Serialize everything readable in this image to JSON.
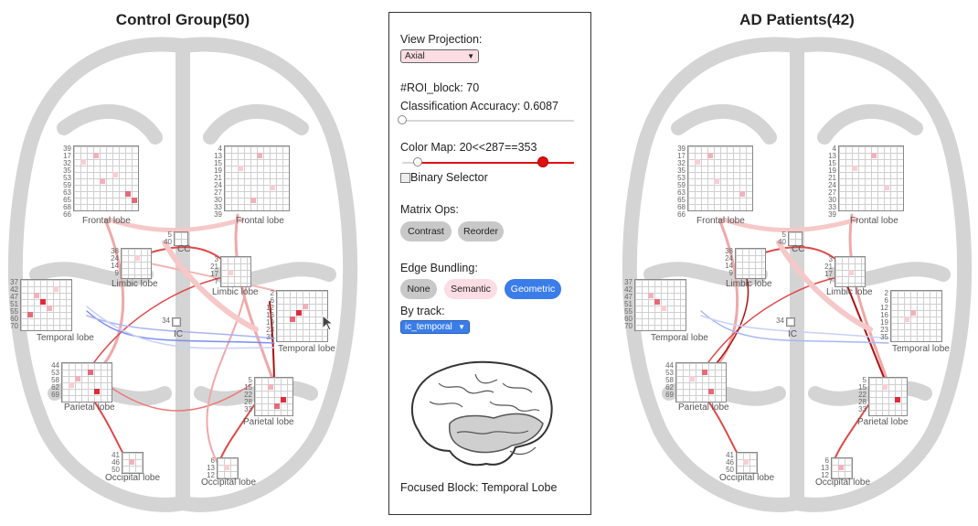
{
  "views": {
    "left": {
      "title": "Control Group(50)",
      "matrices": [
        {
          "label": "Frontal lobe",
          "ids": [
            "39",
            "17",
            "32",
            "35",
            "53",
            "59",
            "63",
            "65",
            "68",
            "66"
          ]
        },
        {
          "label": "Frontal lobe",
          "ids": [
            "4",
            "13",
            "15",
            "19",
            "21",
            "24",
            "27",
            "30",
            "33",
            "39"
          ]
        },
        {
          "label": "Limbic lobe",
          "ids": [
            "38",
            "24",
            "14",
            "9"
          ]
        },
        {
          "label": "Limbic lobe",
          "ids": [
            "3",
            "21",
            "17",
            "7"
          ]
        },
        {
          "label": "Temporal lobe",
          "ids": [
            "37",
            "42",
            "47",
            "51",
            "55",
            "60",
            "70"
          ]
        },
        {
          "label": "Temporal lobe",
          "ids": [
            "2",
            "6",
            "12",
            "16",
            "19",
            "23",
            "35"
          ]
        },
        {
          "label": "Parietal lobe",
          "ids": [
            "44",
            "53",
            "58",
            "62",
            "69"
          ]
        },
        {
          "label": "Parietal lobe",
          "ids": [
            "5",
            "15",
            "22",
            "28",
            "33"
          ]
        },
        {
          "label": "Occipital lobe",
          "ids": [
            "41",
            "46",
            "50"
          ]
        },
        {
          "label": "Occipital lobe",
          "ids": [
            "6",
            "13",
            "12"
          ]
        },
        {
          "label": "CC",
          "ids": [
            "5",
            "40"
          ]
        },
        {
          "label": "IC",
          "ids": [
            "34"
          ]
        }
      ]
    },
    "right": {
      "title": "AD Patients(42)",
      "matrices": [
        {
          "label": "Frontal lobe",
          "ids": [
            "39",
            "17",
            "32",
            "35",
            "53",
            "59",
            "63",
            "65",
            "68",
            "66"
          ]
        },
        {
          "label": "Frontal lobe",
          "ids": [
            "4",
            "13",
            "15",
            "19",
            "21",
            "24",
            "27",
            "30",
            "33",
            "39"
          ]
        },
        {
          "label": "Limbic lobe",
          "ids": [
            "38",
            "24",
            "14",
            "9"
          ]
        },
        {
          "label": "Limbic lobe",
          "ids": [
            "3",
            "21",
            "17",
            "7"
          ]
        },
        {
          "label": "Temporal lobe",
          "ids": [
            "37",
            "42",
            "47",
            "51",
            "55",
            "60",
            "70"
          ]
        },
        {
          "label": "Temporal lobe",
          "ids": [
            "2",
            "6",
            "12",
            "16",
            "19",
            "23",
            "35"
          ]
        },
        {
          "label": "Parietal lobe",
          "ids": [
            "44",
            "53",
            "58",
            "62",
            "69"
          ]
        },
        {
          "label": "Parietal lobe",
          "ids": [
            "5",
            "15",
            "22",
            "28",
            "33"
          ]
        },
        {
          "label": "Occipital lobe",
          "ids": [
            "41",
            "46",
            "50"
          ]
        },
        {
          "label": "Occipital lobe",
          "ids": [
            "6",
            "13",
            "12"
          ]
        },
        {
          "label": "CC",
          "ids": [
            "5",
            "40"
          ]
        },
        {
          "label": "IC",
          "ids": [
            "34"
          ]
        }
      ]
    }
  },
  "panel": {
    "view_projection_label": "View Projection:",
    "view_projection_value": "Axial",
    "roi_block": "#ROI_block: 70",
    "classification_accuracy": "Classification Accuracy: 0.6087",
    "accuracy_slider_value": 0.0,
    "color_map_label": "Color Map: 20<<287==353",
    "color_map_low_fraction": 0.09,
    "color_map_high_fraction": 0.82,
    "binary_selector_label": "Binary Selector",
    "matrix_ops_label": "Matrix Ops:",
    "matrix_ops_buttons": [
      "Contrast",
      "Reorder"
    ],
    "edge_bundling_label": "Edge Bundling:",
    "edge_bundling_buttons": [
      "None",
      "Semantic",
      "Geometric"
    ],
    "edge_bundling_selected": "Geometric",
    "by_track_label": "By track:",
    "by_track_value": "ic_temporal",
    "focused_block": "Focused Block: Temporal Lobe"
  },
  "colors": {
    "edge_red": "#e04848",
    "edge_blue": "#7b8df0",
    "accent_blue": "#3a7de8",
    "slider_red": "#e01010"
  }
}
